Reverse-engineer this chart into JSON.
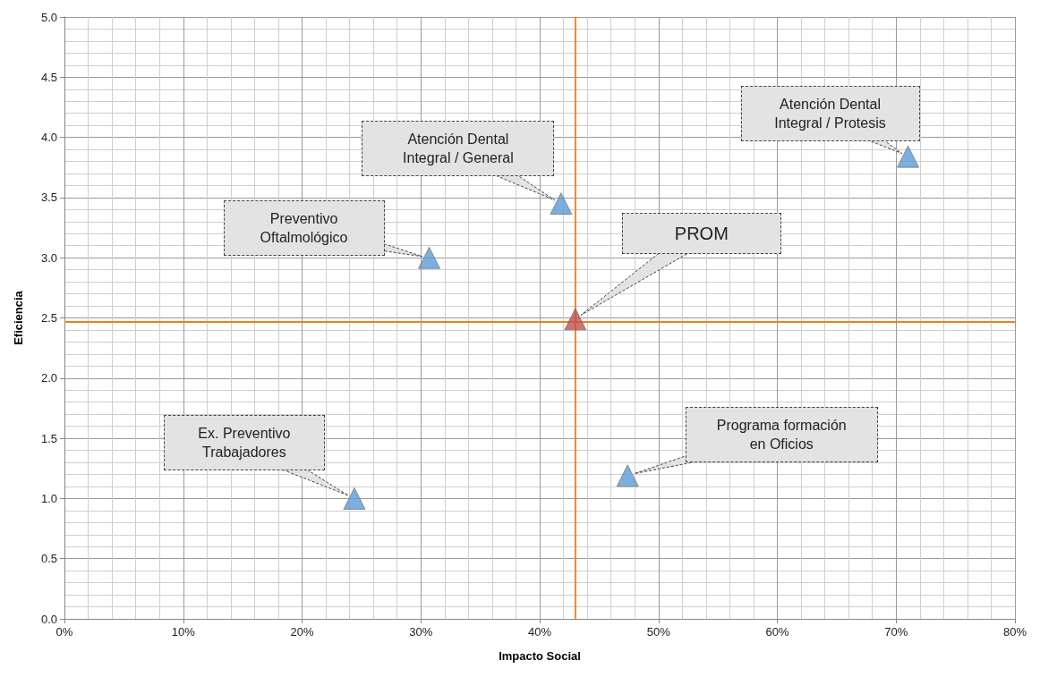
{
  "chart_data": {
    "type": "scatter",
    "xlabel": "Impacto Social",
    "ylabel": "Eficiencia",
    "x": [
      24.4,
      30.7,
      41.8,
      43.0,
      47.4,
      71.0
    ],
    "values": [
      1.0,
      3.0,
      3.45,
      2.49,
      1.19,
      3.84
    ],
    "colors": [
      "#5b9bd5",
      "#5b9bd5",
      "#5b9bd5",
      "#c0504d",
      "#5b9bd5",
      "#5b9bd5"
    ],
    "marker": "triangle",
    "grid": true,
    "xlim": [
      0,
      80
    ],
    "xticks": [
      {
        "value": 0,
        "label": "0%"
      },
      {
        "value": 10,
        "label": "10%"
      },
      {
        "value": 20,
        "label": "20%"
      },
      {
        "value": 30,
        "label": "30%"
      },
      {
        "value": 40,
        "label": "40%"
      },
      {
        "value": 50,
        "label": "50%"
      },
      {
        "value": 60,
        "label": "60%"
      },
      {
        "value": 70,
        "label": "70%"
      },
      {
        "value": 80,
        "label": "80%"
      }
    ],
    "ylim": [
      0,
      5
    ],
    "yticks": [
      {
        "value": 0,
        "label": "0.0"
      },
      {
        "value": 0.5,
        "label": "0.5"
      },
      {
        "value": 1,
        "label": "1.0"
      },
      {
        "value": 1.5,
        "label": "1.5"
      },
      {
        "value": 2,
        "label": "2.0"
      },
      {
        "value": 2.5,
        "label": "2.5"
      },
      {
        "value": 3,
        "label": "3.0"
      },
      {
        "value": 3.5,
        "label": "3.5"
      },
      {
        "value": 4,
        "label": "4.0"
      },
      {
        "value": 4.5,
        "label": "4.5"
      },
      {
        "value": 5,
        "label": "5.0"
      }
    ],
    "ref_lines": [
      {
        "axis": "x",
        "value": 43.0,
        "color": "#f07f1e"
      },
      {
        "axis": "y",
        "value": 2.47,
        "color": "#f07f1e"
      }
    ],
    "annotations": [
      "Ex. Preventivo Trabajadores",
      {
        "text": "Preventivo Oftalmológico",
        "x": 30.7,
        "y": 3.0
      },
      "Atención Dental Integral / General",
      "PROM",
      {
        "text": "Programa formación en Oficios",
        "x": 47.4,
        "y": 1.19
      },
      {
        "text": "Atención Dental Integral / Protesis",
        "x": 71.0,
        "y": 3.84
      }
    ]
  }
}
